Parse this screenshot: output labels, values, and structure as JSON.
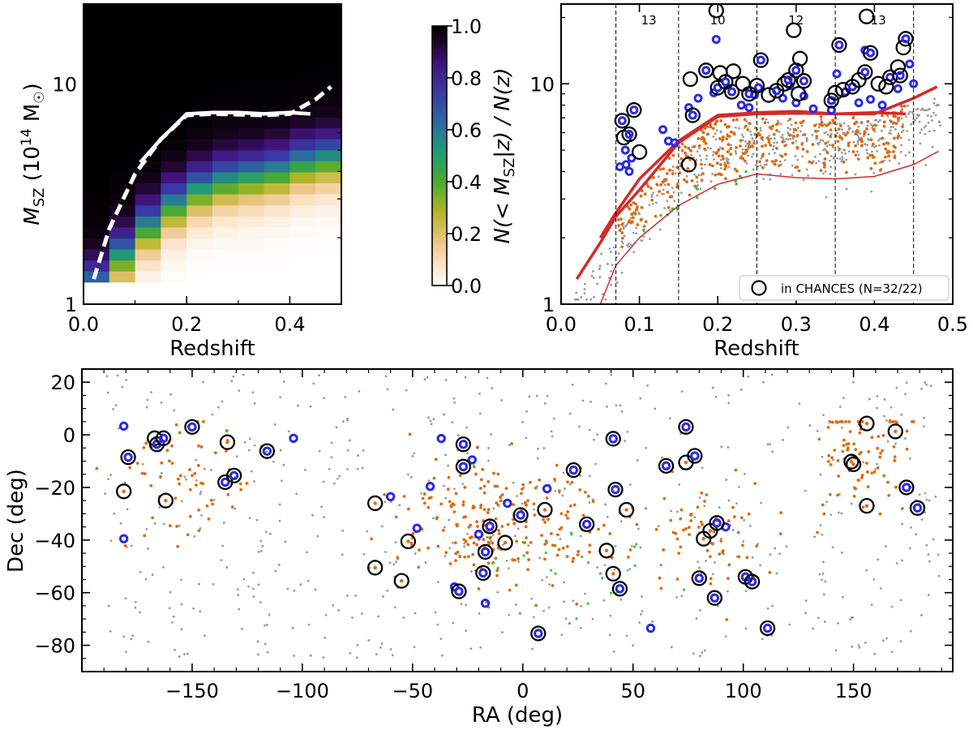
{
  "colors": {
    "gray": "#999999",
    "orange": "#e06a10",
    "green": "#3cc43c",
    "blue": "#2a2ae8",
    "red": "#d42a2a",
    "black": "#000000"
  },
  "chart_data": [
    {
      "id": "heatmap",
      "type": "heatmap",
      "xlabel": "Redshift",
      "ylabel_main": "M",
      "ylabel_sub": "SZ",
      "ylabel_units": " (10",
      "ylabel_exp": "14",
      "ylabel_tail": " M",
      "ylabel_sun": "☉",
      "ylabel_close": ")",
      "xlim": [
        0.0,
        0.5
      ],
      "ylim": [
        1,
        23
      ],
      "yscale": "log",
      "xticks": [
        0.0,
        0.2,
        0.4
      ],
      "xtick_labels": [
        "0.0",
        "0.2",
        "0.4"
      ],
      "yticks": [
        1,
        10
      ],
      "ytick_labels": [
        "1",
        "10"
      ],
      "columns_z": [
        0.025,
        0.075,
        0.125,
        0.175,
        0.225,
        0.275,
        0.325,
        0.375,
        0.425,
        0.475
      ],
      "row_edges_log10": [
        0.1,
        0.15,
        0.2,
        0.25,
        0.3,
        0.35,
        0.4,
        0.45,
        0.5,
        0.55,
        0.6,
        0.65,
        0.7,
        0.75,
        0.8,
        0.85,
        0.9,
        0.95,
        1.0,
        1.05,
        1.1,
        1.15
      ],
      "transition_centres_log10": [
        0.08,
        0.22,
        0.35,
        0.45,
        0.52,
        0.56,
        0.58,
        0.6,
        0.64,
        0.66
      ],
      "dashed_curve": {
        "x": [
          0.02,
          0.05,
          0.1,
          0.15,
          0.2,
          0.25,
          0.3,
          0.35,
          0.4,
          0.45,
          0.48
        ],
        "y": [
          1.3,
          2.2,
          3.9,
          5.6,
          7.2,
          7.3,
          7.25,
          7.2,
          7.3,
          8.5,
          9.7
        ]
      },
      "solid_curve": {
        "x": [
          0.11,
          0.15,
          0.2,
          0.25,
          0.3,
          0.35,
          0.4,
          0.44
        ],
        "y": [
          4.4,
          5.6,
          7.3,
          7.4,
          7.4,
          7.3,
          7.4,
          7.3
        ]
      }
    },
    {
      "id": "colorbar",
      "type": "colorbar",
      "label_pre": "N(< M",
      "label_sub": "SZ",
      "label_post": "|z) / N(z)",
      "range": [
        0.0,
        1.0
      ],
      "ticks": [
        0.0,
        0.2,
        0.4,
        0.6,
        0.8,
        1.0
      ],
      "tick_labels": [
        "0.0",
        "0.2",
        "0.4",
        "0.6",
        "0.8",
        "1.0"
      ]
    },
    {
      "id": "mass-redshift",
      "type": "scatter",
      "xlabel": "Redshift",
      "xlim": [
        0.0,
        0.5
      ],
      "ylim": [
        1,
        23
      ],
      "yscale": "log",
      "xticks": [
        0.0,
        0.1,
        0.2,
        0.3,
        0.4,
        0.5
      ],
      "xtick_labels": [
        "0.0",
        "0.1",
        "0.2",
        "0.3",
        "0.4",
        "0.5"
      ],
      "yticks": [
        1,
        10
      ],
      "ytick_labels": [
        "1",
        "10"
      ],
      "bin_edges": [
        0.07,
        0.15,
        0.25,
        0.35,
        0.45
      ],
      "bin_counts": [
        {
          "z": 0.112,
          "label": "13"
        },
        {
          "z": 0.2,
          "label": "10"
        },
        {
          "z": 0.3,
          "label": "12"
        },
        {
          "z": 0.405,
          "label": "13"
        }
      ],
      "legend_label": "in CHANCES (N=32/22)",
      "legend_placement": "lower-right",
      "thick_curves": [
        {
          "x": [
            0.02,
            0.05,
            0.07,
            0.1,
            0.15,
            0.2,
            0.25,
            0.3,
            0.35,
            0.4,
            0.45,
            0.48
          ],
          "y": [
            1.3,
            1.9,
            2.5,
            3.3,
            5.4,
            7.1,
            7.3,
            7.35,
            7.3,
            7.3,
            8.6,
            9.7
          ]
        },
        {
          "x": [
            0.05,
            0.07,
            0.1,
            0.15,
            0.2,
            0.25,
            0.3,
            0.35,
            0.4,
            0.44
          ],
          "y": [
            2.0,
            2.6,
            3.7,
            5.5,
            7.2,
            7.4,
            7.5,
            7.3,
            7.4,
            7.3
          ]
        }
      ],
      "thin_curve": {
        "x": [
          0.05,
          0.07,
          0.1,
          0.15,
          0.2,
          0.25,
          0.3,
          0.35,
          0.4,
          0.45,
          0.48
        ],
        "y": [
          1.0,
          1.5,
          2.0,
          2.8,
          3.5,
          3.9,
          3.75,
          3.7,
          3.8,
          4.3,
          4.9
        ]
      },
      "chances_members": [
        {
          "z": 0.078,
          "m": 6.8
        },
        {
          "z": 0.08,
          "m": 5.7
        },
        {
          "z": 0.093,
          "m": 7.6
        },
        {
          "z": 0.1,
          "m": 4.9
        },
        {
          "z": 0.087,
          "m": 5.9
        },
        {
          "z": 0.165,
          "m": 10.5
        },
        {
          "z": 0.168,
          "m": 7.2
        },
        {
          "z": 0.163,
          "m": 4.3
        },
        {
          "z": 0.185,
          "m": 11.5
        },
        {
          "z": 0.198,
          "m": 21.5
        },
        {
          "z": 0.2,
          "m": 9.6
        },
        {
          "z": 0.203,
          "m": 11.2
        },
        {
          "z": 0.21,
          "m": 10.2
        },
        {
          "z": 0.22,
          "m": 11.4
        },
        {
          "z": 0.218,
          "m": 9.2
        },
        {
          "z": 0.232,
          "m": 10.0
        },
        {
          "z": 0.24,
          "m": 9.0
        },
        {
          "z": 0.25,
          "m": 9.8
        },
        {
          "z": 0.255,
          "m": 12.8
        },
        {
          "z": 0.265,
          "m": 8.9
        },
        {
          "z": 0.275,
          "m": 9.3
        },
        {
          "z": 0.285,
          "m": 10.0
        },
        {
          "z": 0.29,
          "m": 10.4
        },
        {
          "z": 0.297,
          "m": 17.5
        },
        {
          "z": 0.3,
          "m": 11.5
        },
        {
          "z": 0.305,
          "m": 13.0
        },
        {
          "z": 0.31,
          "m": 10.3
        },
        {
          "z": 0.303,
          "m": 9.0
        },
        {
          "z": 0.345,
          "m": 8.4
        },
        {
          "z": 0.35,
          "m": 9.1
        },
        {
          "z": 0.355,
          "m": 15.0
        },
        {
          "z": 0.36,
          "m": 9.4
        },
        {
          "z": 0.372,
          "m": 9.7
        },
        {
          "z": 0.38,
          "m": 10.4
        },
        {
          "z": 0.388,
          "m": 11.3
        },
        {
          "z": 0.39,
          "m": 20.2
        },
        {
          "z": 0.395,
          "m": 13.8
        },
        {
          "z": 0.405,
          "m": 10.0
        },
        {
          "z": 0.42,
          "m": 10.7
        },
        {
          "z": 0.43,
          "m": 11.9
        },
        {
          "z": 0.433,
          "m": 10.9
        },
        {
          "z": 0.437,
          "m": 14.6
        },
        {
          "z": 0.44,
          "m": 16.0
        },
        {
          "z": 0.415,
          "m": 9.7
        }
      ],
      "blue_only": [
        {
          "z": 0.075,
          "m": 4.2
        },
        {
          "z": 0.083,
          "m": 4.3
        },
        {
          "z": 0.087,
          "m": 4.0
        },
        {
          "z": 0.09,
          "m": 4.6
        },
        {
          "z": 0.082,
          "m": 5.0
        },
        {
          "z": 0.13,
          "m": 6.2
        },
        {
          "z": 0.137,
          "m": 5.5
        },
        {
          "z": 0.145,
          "m": 5.4
        },
        {
          "z": 0.163,
          "m": 7.8
        },
        {
          "z": 0.175,
          "m": 8.6
        },
        {
          "z": 0.198,
          "m": 15.9
        },
        {
          "z": 0.195,
          "m": 9.1
        },
        {
          "z": 0.23,
          "m": 8.0
        },
        {
          "z": 0.24,
          "m": 7.8
        },
        {
          "z": 0.247,
          "m": 8.9
        },
        {
          "z": 0.252,
          "m": 9.6
        },
        {
          "z": 0.283,
          "m": 8.6
        },
        {
          "z": 0.292,
          "m": 9.8
        },
        {
          "z": 0.3,
          "m": 8.2
        },
        {
          "z": 0.31,
          "m": 8.8
        },
        {
          "z": 0.322,
          "m": 7.7
        },
        {
          "z": 0.345,
          "m": 7.6
        },
        {
          "z": 0.352,
          "m": 11.1
        },
        {
          "z": 0.363,
          "m": 9.2
        },
        {
          "z": 0.38,
          "m": 8.2
        },
        {
          "z": 0.395,
          "m": 8.5
        },
        {
          "z": 0.388,
          "m": 14.2
        },
        {
          "z": 0.41,
          "m": 8.0
        },
        {
          "z": 0.43,
          "m": 9.5
        },
        {
          "z": 0.445,
          "m": 12.3
        },
        {
          "z": 0.45,
          "m": 10.0
        }
      ],
      "field_samples": {
        "gray": 480,
        "orange": 330,
        "green": 14
      }
    },
    {
      "id": "sky",
      "type": "scatter",
      "xlabel": "RA (deg)",
      "ylabel": "Dec (deg)",
      "xlim": [
        -200,
        195
      ],
      "ylim": [
        -90,
        25
      ],
      "xticks": [
        -150,
        -100,
        -50,
        0,
        50,
        100,
        150
      ],
      "xtick_labels": [
        "−150",
        "−100",
        "−50",
        "0",
        "50",
        "100",
        "150"
      ],
      "yticks": [
        20,
        0,
        -20,
        -40,
        -60,
        -80
      ],
      "ytick_labels": [
        "20",
        "0",
        "−20",
        "−40",
        "−60",
        "−80"
      ],
      "chances_blue": [
        [
          -179,
          -8.5
        ],
        [
          -166,
          -3.6
        ],
        [
          -163,
          -1.3
        ],
        [
          -150,
          3.0
        ],
        [
          -135,
          -18.0
        ],
        [
          -131,
          -15.5
        ],
        [
          -116,
          -6.2
        ],
        [
          -29,
          -59.5
        ],
        [
          -27,
          -3.6
        ],
        [
          -27,
          -12.1
        ],
        [
          -18,
          -52.5
        ],
        [
          -17,
          -44.5
        ],
        [
          -15,
          -34.8
        ],
        [
          -1,
          -30.5
        ],
        [
          7,
          -75.5
        ],
        [
          23,
          -13.4
        ],
        [
          29,
          -34.0
        ],
        [
          41,
          -1.5
        ],
        [
          42,
          -20.8
        ],
        [
          44,
          -58.5
        ],
        [
          65,
          -11.8
        ],
        [
          74,
          3.0
        ],
        [
          78,
          -8.0
        ],
        [
          80,
          -54.5
        ],
        [
          87,
          -62.0
        ],
        [
          88,
          -33.5
        ],
        [
          101,
          -54.0
        ],
        [
          104,
          -55.8
        ],
        [
          111,
          -73.5
        ],
        [
          174,
          -20.0
        ],
        [
          179,
          -27.8
        ]
      ],
      "chances_orange": [
        [
          -181,
          -21.5
        ],
        [
          -167,
          -1.3
        ],
        [
          -162,
          -25.0
        ],
        [
          -134,
          -2.8
        ],
        [
          -67,
          -26.0
        ],
        [
          -67,
          -50.5
        ],
        [
          -55,
          -55.5
        ],
        [
          -52,
          -40.5
        ],
        [
          -8,
          -41.0
        ],
        [
          10,
          -28.5
        ],
        [
          38,
          -44.0
        ],
        [
          41,
          -52.8
        ],
        [
          47,
          -28.5
        ],
        [
          74,
          -10.5
        ],
        [
          82,
          -39.5
        ],
        [
          85,
          -36.5
        ],
        [
          149,
          -10.2
        ],
        [
          150,
          -11.2
        ],
        [
          156,
          -27.0
        ],
        [
          156,
          4.3
        ],
        [
          169,
          1.3
        ]
      ],
      "blue_only": [
        [
          -181,
          3.3
        ],
        [
          -181,
          -39.5
        ],
        [
          -104,
          -1.3
        ],
        [
          -48,
          -35.5
        ],
        [
          -42,
          -19.6
        ],
        [
          -37,
          -1.4
        ],
        [
          -31,
          -57.8
        ],
        [
          -23,
          -9.5
        ],
        [
          -20,
          -37.8
        ],
        [
          -17,
          -64.0
        ],
        [
          -7,
          -26.0
        ],
        [
          11,
          -20.5
        ],
        [
          58,
          -73.5
        ],
        [
          92,
          -35.0
        ],
        [
          -60,
          -23.5
        ]
      ],
      "field_samples": {
        "gray": 620,
        "orange": 430,
        "green": 30
      }
    }
  ]
}
